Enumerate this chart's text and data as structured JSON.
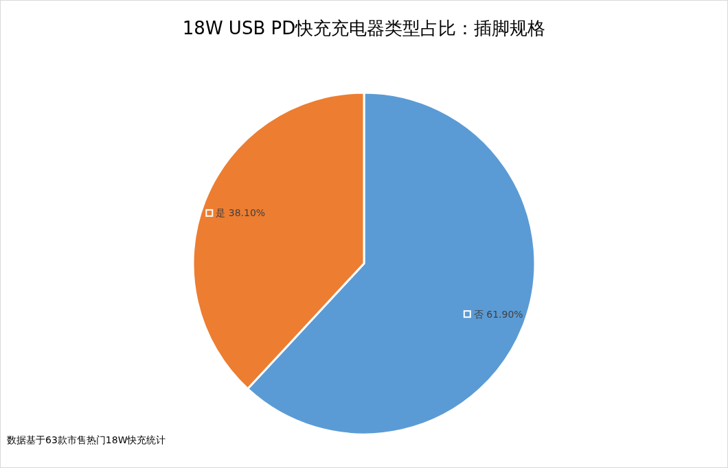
{
  "chart_data": {
    "type": "pie",
    "title": "18W USB PD快充充电器类型占比：插脚规格",
    "categories": [
      "否",
      "是"
    ],
    "values": [
      61.9,
      38.1
    ],
    "value_labels": [
      "61.90%",
      "38.10%"
    ],
    "colors": [
      "#5b9bd5",
      "#ed7d31"
    ],
    "annotations": [
      "数据基于63款市售热门18W快充统计"
    ]
  }
}
